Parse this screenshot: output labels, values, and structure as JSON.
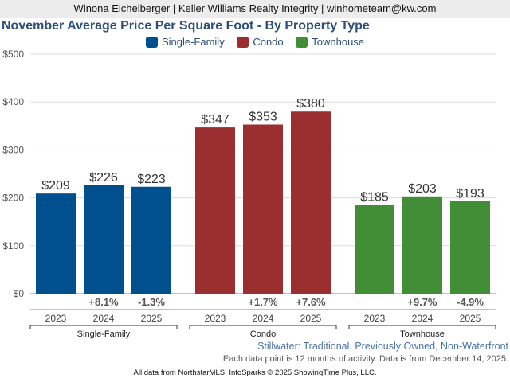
{
  "header": "Winona Eichelberger | Keller Williams Realty Integrity | winhometeam@kw.com",
  "subtitle": "Stillwater: Traditional, Previously Owned, Non-Waterfront",
  "note": "Each data point is 12 months of activity. Data is from December 14, 2025.",
  "source": "All data from NorthstarMLS. InfoSparks © 2025 ShowingTime Plus, LLC.",
  "chart_data": {
    "type": "bar",
    "title": "November Average Price Per Square Foot - By Property Type",
    "ylim": [
      0,
      500
    ],
    "yticks": [
      "$0",
      "$100",
      "$200",
      "$300",
      "$400",
      "$500"
    ],
    "legend_position": "top-center",
    "groups": [
      {
        "name": "Single-Family",
        "color": "#00508f",
        "years": [
          "2023",
          "2024",
          "2025"
        ],
        "values": [
          209,
          226,
          223
        ],
        "labels": [
          "$209",
          "$226",
          "$223"
        ],
        "changes": [
          "",
          "+8.1%",
          "-1.3%"
        ]
      },
      {
        "name": "Condo",
        "color": "#9b2f2f",
        "years": [
          "2023",
          "2024",
          "2025"
        ],
        "values": [
          347,
          353,
          380
        ],
        "labels": [
          "$347",
          "$353",
          "$380"
        ],
        "changes": [
          "",
          "+1.7%",
          "+7.6%"
        ]
      },
      {
        "name": "Townhouse",
        "color": "#428e37",
        "years": [
          "2023",
          "2024",
          "2025"
        ],
        "values": [
          185,
          203,
          193
        ],
        "labels": [
          "$185",
          "$203",
          "$193"
        ],
        "changes": [
          "",
          "+9.7%",
          "-4.9%"
        ]
      }
    ]
  }
}
